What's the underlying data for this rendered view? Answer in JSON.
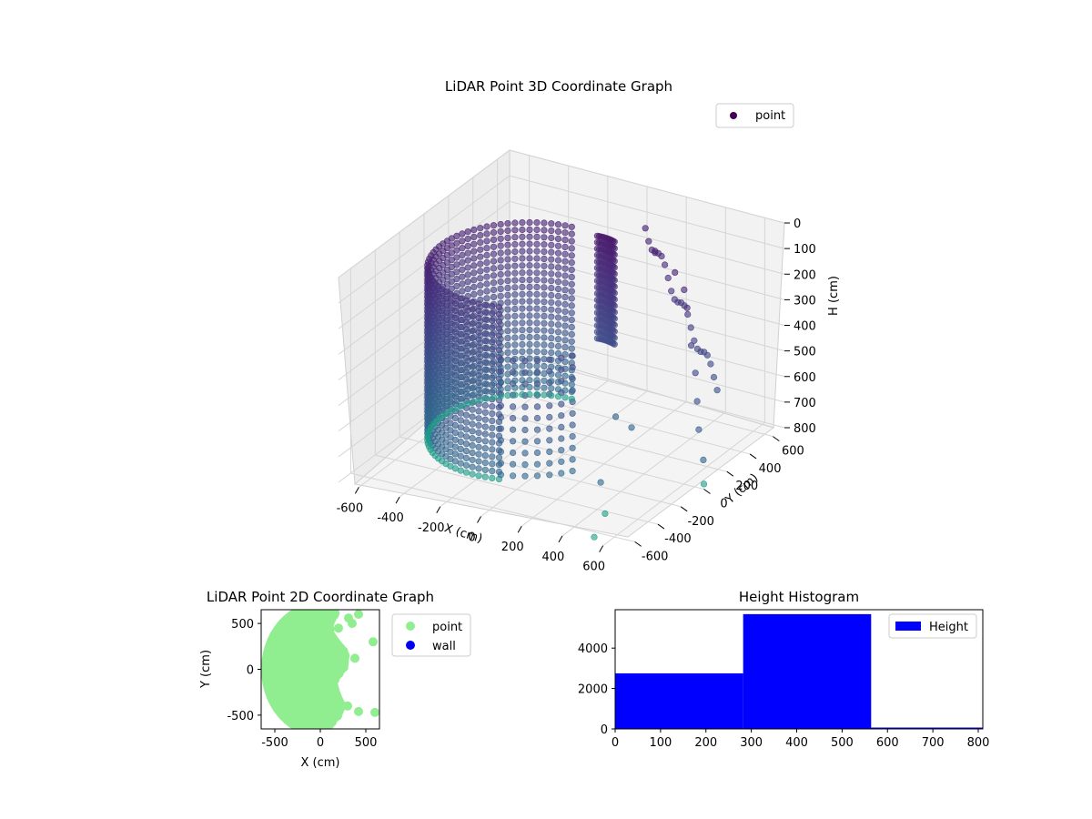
{
  "chart_data": [
    {
      "type": "scatter3d",
      "title": "LiDAR Point 3D Coordinate Graph",
      "xlabel": "X (cm)",
      "ylabel": "Y (cm)",
      "zlabel": "H (cm)",
      "xlim": [
        -700,
        700
      ],
      "ylim": [
        -700,
        700
      ],
      "zlim": [
        0,
        800
      ],
      "z_inverted": true,
      "xticks": [
        "-600",
        "-400",
        "-200",
        "0",
        "200",
        "400",
        "600"
      ],
      "yticks": [
        "-600",
        "-400",
        "-200",
        "0",
        "200",
        "400",
        "600"
      ],
      "zticks": [
        "0",
        "100",
        "200",
        "300",
        "400",
        "500",
        "600",
        "700",
        "800"
      ],
      "legend": {
        "entries": [
          {
            "label": "point",
            "color": "#440154"
          }
        ],
        "placement": "top-right"
      },
      "colormap": "viridis",
      "structures": {
        "wall_ring": {
          "center": [
            -180,
            0
          ],
          "radius": 430,
          "z_range": [
            100,
            780
          ]
        },
        "scattered": [
          [
            250,
            350,
            80
          ],
          [
            380,
            300,
            120
          ],
          [
            450,
            260,
            160
          ],
          [
            500,
            200,
            200
          ],
          [
            550,
            150,
            320
          ],
          [
            600,
            100,
            400
          ],
          [
            620,
            80,
            500
          ],
          [
            640,
            60,
            600
          ],
          [
            680,
            30,
            700
          ],
          [
            700,
            0,
            780
          ],
          [
            330,
            -250,
            760
          ],
          [
            450,
            -420,
            800
          ],
          [
            500,
            -600,
            820
          ],
          [
            200,
            100,
            650
          ],
          [
            250,
            150,
            700
          ]
        ]
      },
      "grid": true
    },
    {
      "type": "scatter",
      "title": "LiDAR Point 2D Coordinate Graph",
      "xlabel": "X (cm)",
      "ylabel": "Y (cm)",
      "xlim": [
        -650,
        650
      ],
      "ylim": [
        -650,
        650
      ],
      "xticks": [
        "-500",
        "0",
        "500"
      ],
      "yticks": [
        "-500",
        "0",
        "500"
      ],
      "series": [
        {
          "name": "point",
          "color": "#90ee90",
          "region": {
            "x_min": -600,
            "x_max": 250,
            "y_range": [
              -640,
              640
            ]
          },
          "extra_points": [
            [
              350,
              500
            ],
            [
              420,
              600
            ],
            [
              380,
              120
            ],
            [
              300,
              -400
            ],
            [
              420,
              -460
            ],
            [
              580,
              300
            ],
            [
              600,
              -470
            ],
            [
              200,
              450
            ],
            [
              310,
              560
            ]
          ]
        },
        {
          "name": "wall",
          "color": "#0000ee",
          "values": []
        }
      ],
      "legend": {
        "placement": "outside-right"
      }
    },
    {
      "type": "bar",
      "title": "Height Histogram",
      "xlim": [
        0,
        810
      ],
      "ylim": [
        0,
        5900
      ],
      "xticks": [
        "0",
        "100",
        "200",
        "300",
        "400",
        "500",
        "600",
        "700",
        "800"
      ],
      "yticks": [
        "0",
        "2000",
        "4000"
      ],
      "bins": [
        {
          "start": 0,
          "end": 282,
          "count": 2750
        },
        {
          "start": 282,
          "end": 564,
          "count": 5680
        },
        {
          "start": 564,
          "end": 810,
          "count": 30
        }
      ],
      "series": [
        {
          "name": "Height",
          "color": "#0000ff"
        }
      ],
      "legend": {
        "placement": "top-right"
      }
    }
  ]
}
